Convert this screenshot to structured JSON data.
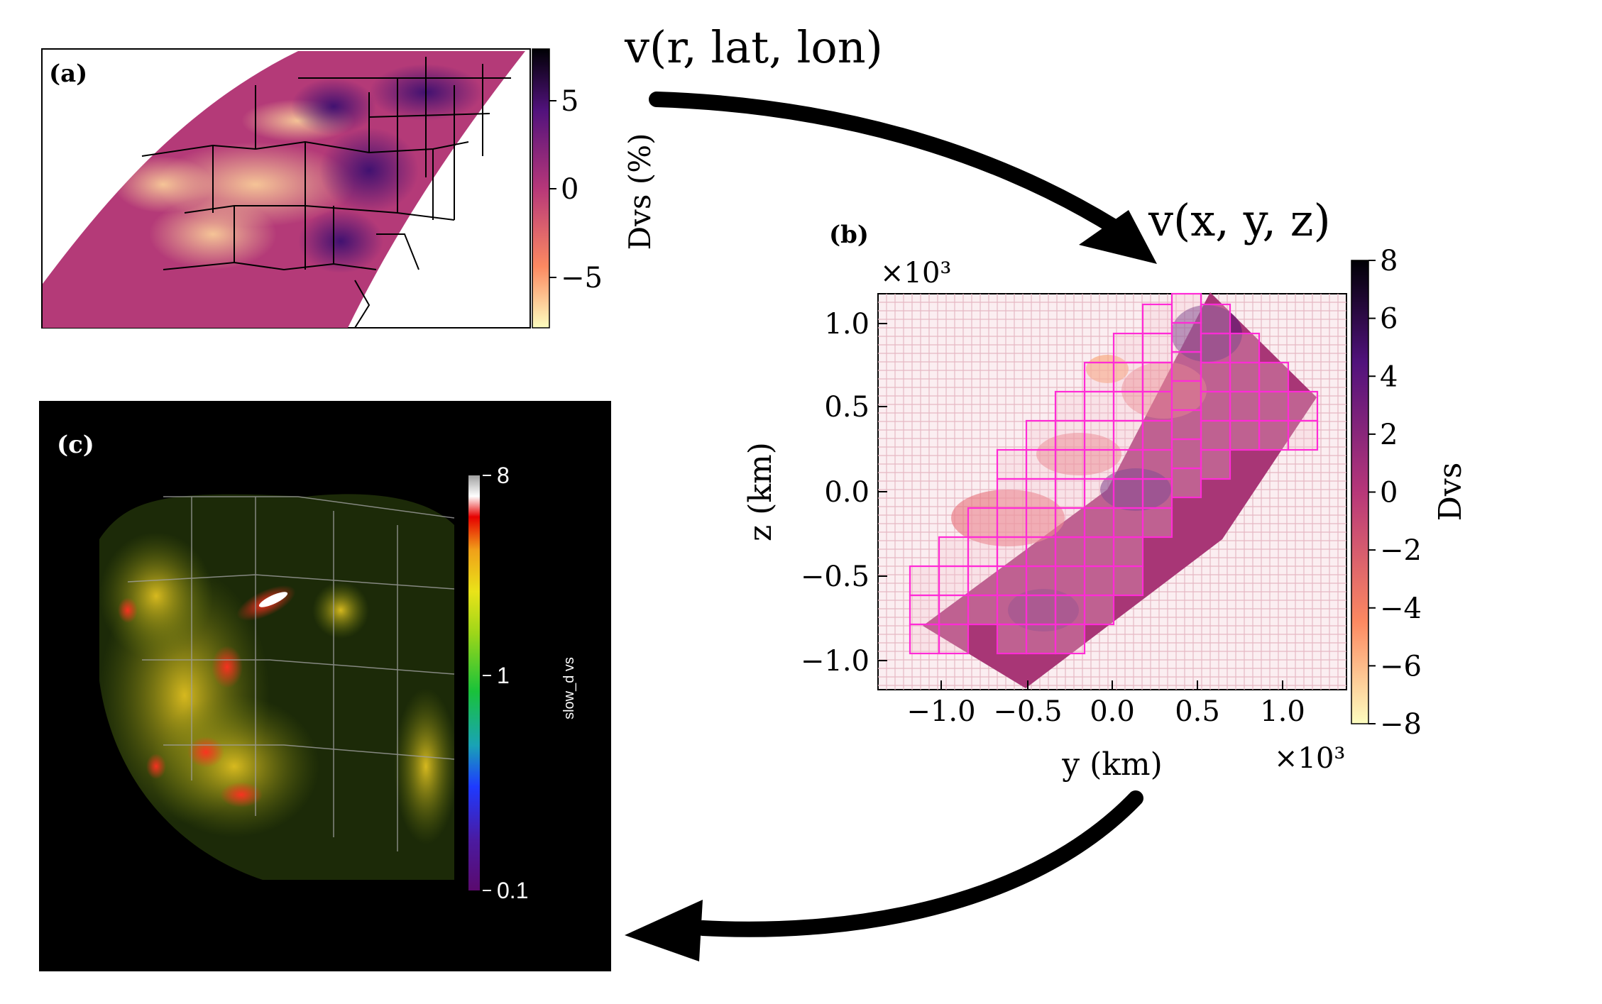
{
  "annotations": {
    "top_label": "v(r, lat, lon)",
    "middle_label": "v(x, y, z)"
  },
  "panel_a": {
    "label": "(a)",
    "colorbar_label": "Dvs  (%)",
    "colorbar_ticks": [
      "5",
      "0",
      "−5"
    ],
    "colormap": [
      "#fcfdbf",
      "#fc8961",
      "#b73779",
      "#51127c",
      "#000004"
    ]
  },
  "panel_b": {
    "label": "(b)",
    "xlabel": "y  (km)",
    "ylabel": "z  (km)",
    "x_multiplier": "×10³",
    "y_multiplier": "×10³",
    "colorbar_label": "Dvs",
    "colorbar_ticks": [
      "8",
      "6",
      "4",
      "2",
      "0",
      "−2",
      "−4",
      "−6",
      "−8"
    ],
    "grid_color": "#e6b8c4",
    "block_color": "#ff2bd6"
  },
  "panel_c": {
    "label": "(c)",
    "colorbar_label": "slow_d vs",
    "colorbar_ticks": [
      "8",
      "1",
      "0.1"
    ]
  },
  "chart_data": {
    "type": "heatmap",
    "title": "",
    "xlabel": "y  (km)",
    "ylabel": "z  (km)",
    "x_scale_factor": 1000,
    "y_scale_factor": 1000,
    "xlim": [
      -1.35,
      1.35
    ],
    "ylim": [
      -1.15,
      1.15
    ],
    "xticks": [
      -1.0,
      -0.5,
      0.0,
      0.5,
      1.0
    ],
    "yticks": [
      1.0,
      0.5,
      0.0,
      -0.5,
      -1.0
    ],
    "xtick_labels": [
      "−1.0",
      "−0.5",
      "0.0",
      "0.5",
      "1.0"
    ],
    "ytick_labels": [
      "1.0",
      "0.5",
      "0.0",
      "−0.5",
      "−1.0"
    ],
    "colorbar_range": [
      -8,
      8
    ],
    "grid": true
  }
}
